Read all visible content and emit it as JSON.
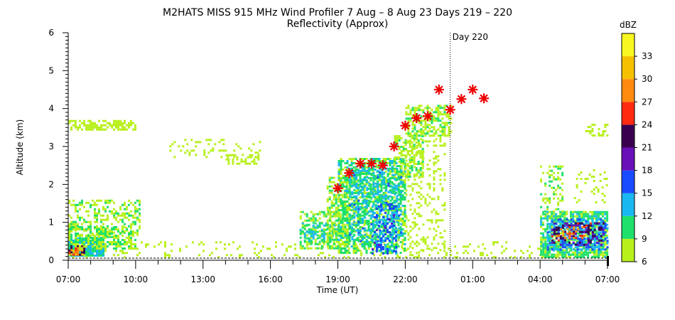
{
  "chart_data": {
    "type": "heatmap",
    "title": "M2HATS MISS 915 MHz Wind Profiler   7 Aug –  8 Aug 23 Days 219 – 220",
    "subtitle": "Reflectivity (Approx)",
    "xlabel": "Time (UT)",
    "ylabel": "Altitude (km)",
    "x_ticks": [
      "07:00",
      "10:00",
      "13:00",
      "16:00",
      "19:00",
      "22:00",
      "01:00",
      "04:00",
      "07:00"
    ],
    "x_range_hours": [
      0,
      24
    ],
    "y_ticks": [
      "0",
      "1",
      "2",
      "3",
      "4",
      "5",
      "6"
    ],
    "ylim": [
      0,
      6
    ],
    "day_marker": {
      "label": "Day 220",
      "x_hours": 17
    },
    "colorbar": {
      "unit": "dBZ",
      "ticks": [
        "6",
        "9",
        "12",
        "15",
        "18",
        "21",
        "24",
        "27",
        "30",
        "33"
      ],
      "range": [
        6,
        36
      ],
      "colors": [
        "#b8f01c",
        "#1ee06a",
        "#1ab8f0",
        "#1a4cff",
        "#6a10b8",
        "#3a0050",
        "#ff2a10",
        "#ff8a10",
        "#f5c000",
        "#f8f820"
      ]
    },
    "series": [
      {
        "type": "scatter",
        "marker": "asterisk",
        "color": "#ee0000",
        "x_hours": [
          12.0,
          12.5,
          13.0,
          13.5,
          14.0,
          14.5,
          15.0,
          15.5,
          16.0,
          16.5,
          17.0,
          17.5,
          18.0,
          18.5
        ],
        "y_km": [
          1.9,
          2.3,
          2.55,
          2.55,
          2.5,
          3.0,
          3.55,
          3.75,
          3.8,
          4.5,
          3.97,
          4.25,
          4.5,
          4.27
        ]
      }
    ],
    "reflectivity_regions": [
      {
        "x": [
          0.0,
          1.6
        ],
        "y": [
          0.1,
          0.6
        ],
        "dbz": 12,
        "density": 0.95
      },
      {
        "x": [
          0.0,
          0.7
        ],
        "y": [
          0.12,
          0.4
        ],
        "dbz": 24,
        "density": 0.75
      },
      {
        "x": [
          0.1,
          0.6
        ],
        "y": [
          0.15,
          0.35
        ],
        "dbz": 30,
        "density": 0.5
      },
      {
        "x": [
          0.0,
          3.2
        ],
        "y": [
          0.6,
          1.6
        ],
        "dbz": 8,
        "density": 0.4
      },
      {
        "x": [
          0.0,
          3.0
        ],
        "y": [
          0.3,
          0.9
        ],
        "dbz": 9,
        "density": 0.55
      },
      {
        "x": [
          0.0,
          3.0
        ],
        "y": [
          3.45,
          3.7
        ],
        "dbz": 6,
        "density": 0.6
      },
      {
        "x": [
          4.5,
          8.5
        ],
        "y": [
          2.7,
          3.2
        ],
        "dbz": 6,
        "density": 0.15
      },
      {
        "x": [
          7.0,
          8.5
        ],
        "y": [
          2.55,
          2.8
        ],
        "dbz": 6,
        "density": 0.45
      },
      {
        "x": [
          0.0,
          24.0
        ],
        "y": [
          0.1,
          0.5
        ],
        "dbz": 6,
        "density": 0.12
      },
      {
        "x": [
          10.3,
          12.0
        ],
        "y": [
          0.3,
          1.3
        ],
        "dbz": 9,
        "density": 0.5
      },
      {
        "x": [
          10.3,
          12.0
        ],
        "y": [
          0.5,
          1.0
        ],
        "dbz": 12,
        "density": 0.35
      },
      {
        "x": [
          11.5,
          12.5
        ],
        "y": [
          0.3,
          2.2
        ],
        "dbz": 8,
        "density": 0.55
      },
      {
        "x": [
          12.0,
          15.0
        ],
        "y": [
          0.2,
          2.7
        ],
        "dbz": 10,
        "density": 0.6
      },
      {
        "x": [
          12.5,
          14.8
        ],
        "y": [
          0.5,
          2.5
        ],
        "dbz": 13,
        "density": 0.45
      },
      {
        "x": [
          13.5,
          14.6
        ],
        "y": [
          0.2,
          1.5
        ],
        "dbz": 16,
        "density": 0.3
      },
      {
        "x": [
          14.5,
          15.8
        ],
        "y": [
          2.2,
          3.3
        ],
        "dbz": 8,
        "density": 0.55
      },
      {
        "x": [
          15.0,
          17.0
        ],
        "y": [
          3.3,
          4.1
        ],
        "dbz": 8,
        "density": 0.55
      },
      {
        "x": [
          15.0,
          16.8
        ],
        "y": [
          0.2,
          3.5
        ],
        "dbz": 6,
        "density": 0.2
      },
      {
        "x": [
          21.0,
          24.0
        ],
        "y": [
          0.1,
          1.3
        ],
        "dbz": 10,
        "density": 0.75
      },
      {
        "x": [
          21.3,
          24.0
        ],
        "y": [
          0.3,
          1.1
        ],
        "dbz": 15,
        "density": 0.55
      },
      {
        "x": [
          21.5,
          23.8
        ],
        "y": [
          0.4,
          1.0
        ],
        "dbz": 22,
        "density": 0.4
      },
      {
        "x": [
          21.7,
          23.0
        ],
        "y": [
          0.6,
          0.9
        ],
        "dbz": 28,
        "density": 0.3
      },
      {
        "x": [
          21.0,
          22.0
        ],
        "y": [
          1.3,
          2.5
        ],
        "dbz": 8,
        "density": 0.3
      },
      {
        "x": [
          22.5,
          24.0
        ],
        "y": [
          1.5,
          2.4
        ],
        "dbz": 6,
        "density": 0.15
      },
      {
        "x": [
          23.0,
          24.0
        ],
        "y": [
          3.3,
          3.6
        ],
        "dbz": 6,
        "density": 0.35
      }
    ]
  }
}
